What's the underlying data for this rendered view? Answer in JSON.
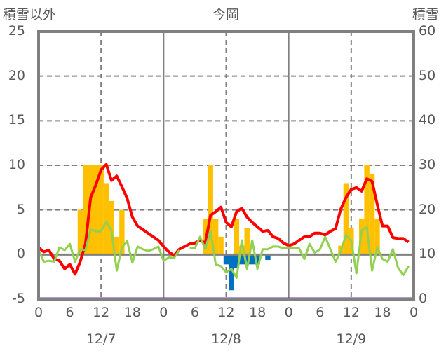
{
  "chart_data": {
    "type": "bar",
    "title": "今岡",
    "ylabel_left": "積雪以外",
    "ylabel_right": "積雪",
    "ylim_left": [
      -5,
      25
    ],
    "ylim_right": [
      0,
      60
    ],
    "yticks_left": [
      "25",
      "20",
      "15",
      "10",
      "5",
      "0",
      "-5"
    ],
    "yticks_right": [
      "60",
      "50",
      "40",
      "30",
      "20",
      "10",
      "0"
    ],
    "xticks": [
      "0",
      "6",
      "12",
      "18",
      "0",
      "6",
      "12",
      "18",
      "0",
      "6",
      "12",
      "18",
      "0"
    ],
    "days": [
      "12/7",
      "12/8",
      "12/9"
    ],
    "hours_total": 72,
    "grid": true,
    "colors": {
      "increase": "#FFC000",
      "decrease": "#0070C0",
      "red": "#FF0000",
      "green": "#92D050",
      "purple": "#7030A0",
      "axis": "#808080"
    },
    "series": [
      {
        "name": "increase-bars",
        "axis": "left",
        "type": "bar",
        "points": [
          [
            8,
            5
          ],
          [
            9,
            10
          ],
          [
            10,
            10
          ],
          [
            11,
            10
          ],
          [
            12,
            10
          ],
          [
            13,
            8
          ],
          [
            14,
            6
          ],
          [
            15,
            2
          ],
          [
            16,
            5
          ],
          [
            32,
            4
          ],
          [
            33,
            10
          ],
          [
            34,
            4
          ],
          [
            35,
            2
          ],
          [
            38,
            4
          ],
          [
            39,
            1
          ],
          [
            40,
            3
          ],
          [
            58,
            1
          ],
          [
            59,
            8
          ],
          [
            60,
            3
          ],
          [
            62,
            4
          ],
          [
            63,
            10
          ],
          [
            64,
            9
          ],
          [
            65,
            4
          ]
        ]
      },
      {
        "name": "decrease-bars",
        "axis": "left",
        "type": "bar",
        "points": [
          [
            36,
            -1.1
          ],
          [
            37,
            -4
          ],
          [
            38,
            -1.5
          ],
          [
            39,
            -1.1
          ],
          [
            40,
            -1.1
          ],
          [
            41,
            -1.1
          ],
          [
            42,
            -1.1
          ],
          [
            44,
            -0.6
          ]
        ]
      },
      {
        "name": "red-line",
        "axis": "left",
        "type": "line",
        "values": [
          0.8,
          0.3,
          0.5,
          -0.5,
          -0.7,
          -1.6,
          -1.1,
          -2.2,
          -0.8,
          1.2,
          6.4,
          7.8,
          9.5,
          10.1,
          8.3,
          8.8,
          7.6,
          6.3,
          4.2,
          3.2,
          2.8,
          2.4,
          2.0,
          1.6,
          0.9,
          0.3,
          -0.1,
          0.6,
          0.9,
          1.2,
          1.3,
          1.6,
          1.3,
          4.4,
          4.8,
          5.3,
          3.6,
          3.1,
          4.8,
          5.2,
          4.2,
          3.6,
          3.1,
          2.6,
          2.7,
          2.0,
          1.8,
          1.3,
          1.0,
          1.2,
          1.6,
          2.0,
          2.0,
          2.4,
          2.4,
          2.2,
          2.6,
          2.9,
          5.1,
          6.4,
          7.3,
          7.5,
          7.1,
          8.5,
          8.2,
          5.6,
          3.2,
          3.2,
          1.9,
          1.8,
          1.8,
          1.4
        ]
      },
      {
        "name": "green-line",
        "axis": "left",
        "type": "line",
        "values": [
          0.5,
          -0.8,
          -0.7,
          -0.8,
          0.8,
          0.5,
          1.2,
          -0.8,
          0.6,
          0.5,
          2.8,
          2.6,
          2.6,
          3.7,
          2.7,
          -1.8,
          0.8,
          1.5,
          -0.9,
          0.9,
          0.6,
          0.4,
          0.6,
          0.9,
          -0.7,
          -0.3,
          -0.4,
          0.5,
          null,
          0.7,
          0.7,
          2.0,
          0.6,
          2.7,
          -1.1,
          -1.3,
          -2.0,
          -1.6,
          -2.6,
          1.6,
          -1.6,
          1.6,
          -1.6,
          0.6,
          0.6,
          0.9,
          0.9,
          0.7,
          0.8,
          0.7,
          0.7,
          -0.5,
          1.2,
          0.2,
          0.6,
          2.0,
          0.6,
          -0.8,
          0.4,
          2.2,
          1.6,
          -2.1,
          2.7,
          3.1,
          -1.8,
          0.8,
          -0.5,
          -0.8,
          0.6,
          -1.5,
          -2.3,
          -1.3
        ]
      },
      {
        "name": "purple-line",
        "axis": "right",
        "type": "line",
        "values": [
          0,
          0
        ]
      }
    ]
  }
}
